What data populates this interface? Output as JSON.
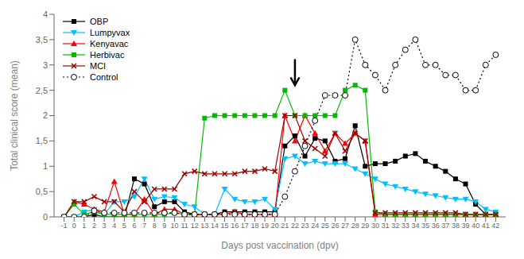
{
  "chart_data": {
    "type": "line",
    "xlabel": "Days post vaccination (dpv)",
    "ylabel": "Total clinical score (mean)",
    "x": [
      -1,
      0,
      1,
      2,
      3,
      4,
      5,
      6,
      7,
      8,
      9,
      10,
      11,
      12,
      13,
      14,
      15,
      16,
      17,
      18,
      19,
      20,
      21,
      22,
      23,
      24,
      25,
      26,
      27,
      28,
      29,
      30,
      31,
      32,
      33,
      34,
      35,
      36,
      37,
      38,
      39,
      40,
      41,
      42
    ],
    "xlim": [
      -2,
      43
    ],
    "xticks": [
      -1,
      0,
      1,
      2,
      3,
      4,
      5,
      6,
      7,
      8,
      9,
      10,
      11,
      12,
      13,
      14,
      15,
      16,
      17,
      18,
      19,
      20,
      21,
      22,
      23,
      24,
      25,
      26,
      27,
      28,
      29,
      30,
      31,
      32,
      33,
      34,
      35,
      36,
      37,
      38,
      39,
      40,
      41,
      42
    ],
    "ylim": [
      0,
      4
    ],
    "yticks": [
      0,
      {
        "value": 0.5,
        "label": "0,5"
      },
      1,
      {
        "value": 1.5,
        "label": "1,5"
      },
      2,
      {
        "value": 2.5,
        "label": "2,5"
      },
      3,
      {
        "value": 3.5,
        "label": "3,5"
      },
      4
    ],
    "grid": false,
    "legend": "upper left",
    "series": [
      {
        "name": "OBP",
        "color": "#000000",
        "marker": "square",
        "line_style": "solid",
        "values": [
          0,
          0,
          0,
          0.05,
          0,
          0,
          0,
          0.75,
          0.65,
          0.2,
          0.3,
          0.3,
          0.1,
          0.05,
          0.05,
          0.05,
          0.1,
          0.1,
          0.1,
          0.1,
          0.1,
          0.1,
          1.4,
          1.6,
          1.2,
          1.55,
          1.5,
          1.1,
          1.15,
          1.8,
          1.0,
          1.05,
          1.05,
          1.1,
          1.2,
          1.25,
          1.1,
          1.0,
          0.9,
          0.75,
          0.65,
          0.25,
          0.05,
          0.05
        ]
      },
      {
        "name": "Lumpyvax",
        "color": "#00bfff",
        "marker": "triangle_down",
        "line_style": "solid",
        "values": [
          0,
          0,
          0.1,
          0.15,
          0.05,
          0.3,
          0.3,
          0.4,
          0.75,
          0.35,
          0.4,
          0.38,
          0.25,
          0.2,
          0.05,
          0.05,
          0.55,
          0.35,
          0.3,
          0.3,
          0.35,
          0.15,
          1.15,
          1.2,
          1.05,
          1.1,
          1.05,
          1.05,
          1.05,
          0.95,
          0.85,
          0.75,
          0.65,
          0.6,
          0.55,
          0.5,
          0.45,
          0.42,
          0.38,
          0.35,
          0.35,
          0.3,
          0.15,
          0.1
        ]
      },
      {
        "name": "Kenyavac",
        "color": "#ff0000",
        "marker": "triangle_up",
        "line_style": "solid",
        "values": [
          0,
          0.3,
          0.25,
          0.15,
          0.1,
          0.7,
          0.05,
          0.05,
          0.35,
          0.05,
          0.15,
          0.15,
          0.05,
          0.05,
          0.05,
          0.05,
          0.05,
          0.1,
          0.05,
          0.05,
          0.05,
          0.05,
          2.0,
          1.5,
          2.0,
          1.65,
          1.3,
          1.65,
          1.45,
          1.65,
          1.5,
          0.05,
          0.05,
          0.05,
          0.05,
          0.05,
          0.05,
          0.05,
          0.05,
          0.05,
          0.05,
          0.05,
          0.05,
          0.05
        ]
      },
      {
        "name": "Herbivac",
        "color": "#00bb00",
        "marker": "square",
        "line_style": "solid",
        "values": [
          0,
          0.25,
          0.05,
          0.1,
          0.05,
          0.05,
          0.05,
          0.05,
          0.05,
          0.05,
          0.05,
          0.08,
          0.05,
          0.05,
          1.95,
          2.0,
          2.0,
          2.0,
          2.0,
          2.0,
          2.0,
          2.0,
          2.5,
          2.0,
          2.0,
          2.0,
          2.0,
          2.0,
          2.5,
          2.6,
          2.5,
          0.1,
          0.05,
          0.05,
          0.05,
          0.05,
          0.05,
          0.05,
          0.05,
          0.05,
          0.05,
          0.05,
          0.05,
          0.05
        ]
      },
      {
        "name": "MCI",
        "color": "#990000",
        "marker": "x",
        "line_style": "solid",
        "values": [
          0,
          0.3,
          0.3,
          0.4,
          0.3,
          0.3,
          0.1,
          0.5,
          0.3,
          0.55,
          0.55,
          0.55,
          0.85,
          0.9,
          0.85,
          0.85,
          0.85,
          0.85,
          0.9,
          0.9,
          0.95,
          0.9,
          2.0,
          2.0,
          1.5,
          1.35,
          1.2,
          1.65,
          1.3,
          1.65,
          1.5,
          0.08,
          0.08,
          0.08,
          0.08,
          0.08,
          0.08,
          0.08,
          0.08,
          0.08,
          0.05,
          0.05,
          0.05,
          0.05
        ]
      },
      {
        "name": "Control",
        "color": "#000000",
        "marker": "circle",
        "line_style": "dotted",
        "values": [
          0,
          0,
          0,
          0.12,
          0.08,
          0.08,
          0.08,
          0.08,
          0.08,
          0.08,
          0.08,
          0.08,
          0.05,
          0.05,
          0.05,
          0.05,
          0.05,
          0.05,
          0.05,
          0.05,
          0.05,
          0.05,
          0.4,
          0.9,
          1.4,
          1.9,
          2.4,
          2.4,
          2.4,
          3.5,
          3.0,
          2.8,
          2.5,
          3.0,
          3.3,
          3.5,
          3.0,
          3.0,
          2.8,
          2.8,
          2.5,
          2.5,
          3.0,
          3.2
        ]
      }
    ],
    "annotations": [
      {
        "type": "arrow",
        "x": 22,
        "y_tail": 3.1,
        "y_tip": 2.6
      }
    ]
  }
}
